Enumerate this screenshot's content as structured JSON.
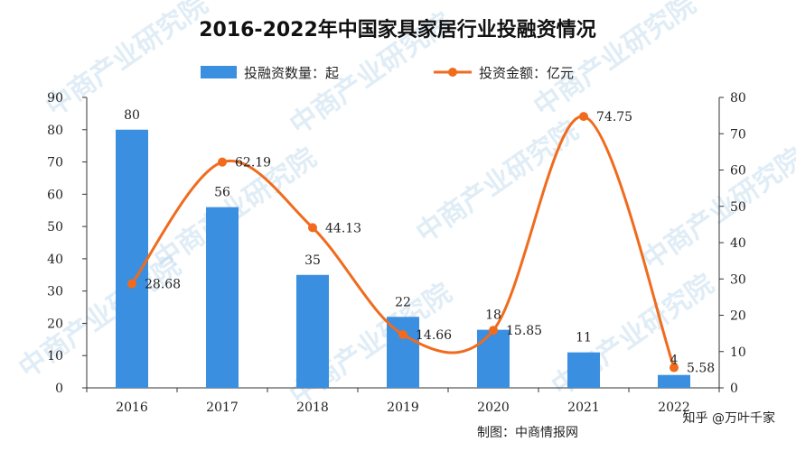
{
  "chart_data": {
    "type": "bar+line",
    "title": "2016-2022年中国家具家居行业投融资情况",
    "categories": [
      "2016",
      "2017",
      "2018",
      "2019",
      "2020",
      "2021",
      "2022"
    ],
    "series": [
      {
        "name": "投融资数量：起",
        "type": "bar",
        "axis": "left",
        "values": [
          80,
          56,
          35,
          22,
          18,
          11,
          4
        ],
        "color": "#3b8fe0"
      },
      {
        "name": "投资金额：亿元",
        "type": "line",
        "axis": "right",
        "values": [
          28.68,
          62.19,
          44.13,
          14.66,
          15.85,
          74.75,
          5.58
        ],
        "color": "#f06b1d"
      }
    ],
    "y_left": {
      "min": 0,
      "max": 90,
      "ticks": [
        "0",
        "10",
        "20",
        "30",
        "40",
        "50",
        "60",
        "70",
        "80",
        "90"
      ]
    },
    "y_right": {
      "min": 0,
      "max": 80,
      "ticks": [
        "0",
        "10",
        "20",
        "30",
        "40",
        "50",
        "60",
        "70",
        "80"
      ]
    },
    "bar_labels": [
      "80",
      "56",
      "35",
      "22",
      "18",
      "11",
      "4"
    ],
    "line_labels": [
      "28.68",
      "62.19",
      "44.13",
      "14.66",
      "15.85",
      "74.75",
      "5.58"
    ],
    "legend_position": "top-center"
  },
  "source": "制图：中商情报网",
  "footer_overlay": "知乎 @万叶千家",
  "watermark": "中商产业研究院"
}
